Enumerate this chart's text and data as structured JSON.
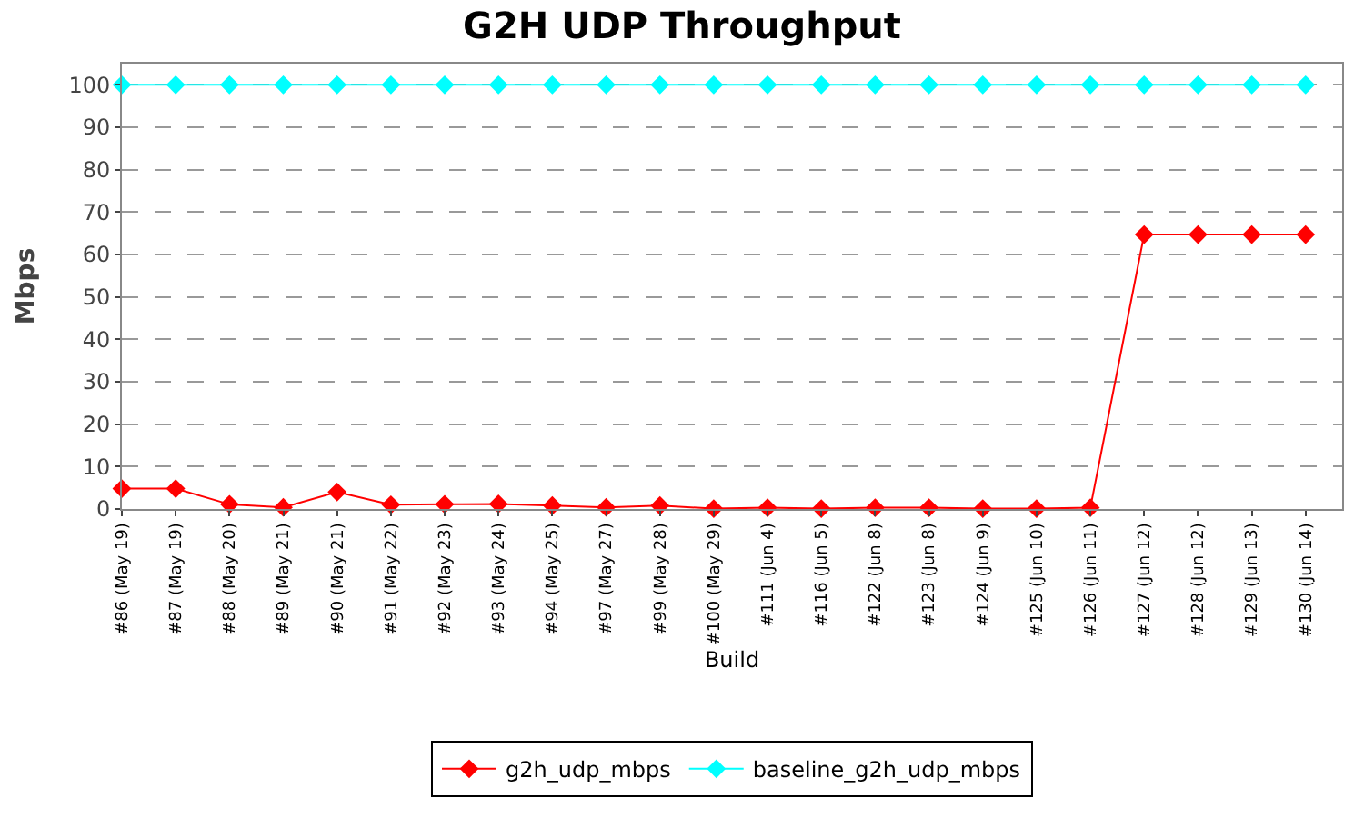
{
  "chart_data": {
    "type": "line",
    "title": "G2H UDP Throughput",
    "xlabel": "Build",
    "ylabel": "Mbps",
    "categories": [
      "#86 (May 19)",
      "#87 (May 19)",
      "#88 (May 20)",
      "#89 (May 21)",
      "#90 (May 21)",
      "#91 (May 22)",
      "#92 (May 23)",
      "#93 (May 24)",
      "#94 (May 25)",
      "#97 (May 27)",
      "#99 (May 28)",
      "#100 (May 29)",
      "#111 (Jun 4)",
      "#116 (Jun 5)",
      "#122 (Jun 8)",
      "#123 (Jun 8)",
      "#124 (Jun 9)",
      "#125 (Jun 10)",
      "#126 (Jun 11)",
      "#127 (Jun 12)",
      "#128 (Jun 12)",
      "#129 (Jun 13)",
      "#130 (Jun 14)"
    ],
    "series": [
      {
        "name": "g2h_udp_mbps",
        "color": "#ff0000",
        "values": [
          4.8,
          4.8,
          1.1,
          0.4,
          4.0,
          1.0,
          1.1,
          1.2,
          0.8,
          0.4,
          0.8,
          0.1,
          0.3,
          0.1,
          0.3,
          0.3,
          0.1,
          0.1,
          0.3,
          64.7,
          64.7,
          64.7,
          64.7
        ]
      },
      {
        "name": "baseline_g2h_udp_mbps",
        "color": "#00ffff",
        "values": [
          100,
          100,
          100,
          100,
          100,
          100,
          100,
          100,
          100,
          100,
          100,
          100,
          100,
          100,
          100,
          100,
          100,
          100,
          100,
          100,
          100,
          100,
          100
        ]
      }
    ],
    "ylim": [
      0,
      105
    ],
    "yticks": [
      0,
      10,
      20,
      30,
      40,
      50,
      60,
      70,
      80,
      90,
      100
    ],
    "grid": "y",
    "legend": "bottom",
    "marker": "diamond",
    "line_style": "solid"
  }
}
